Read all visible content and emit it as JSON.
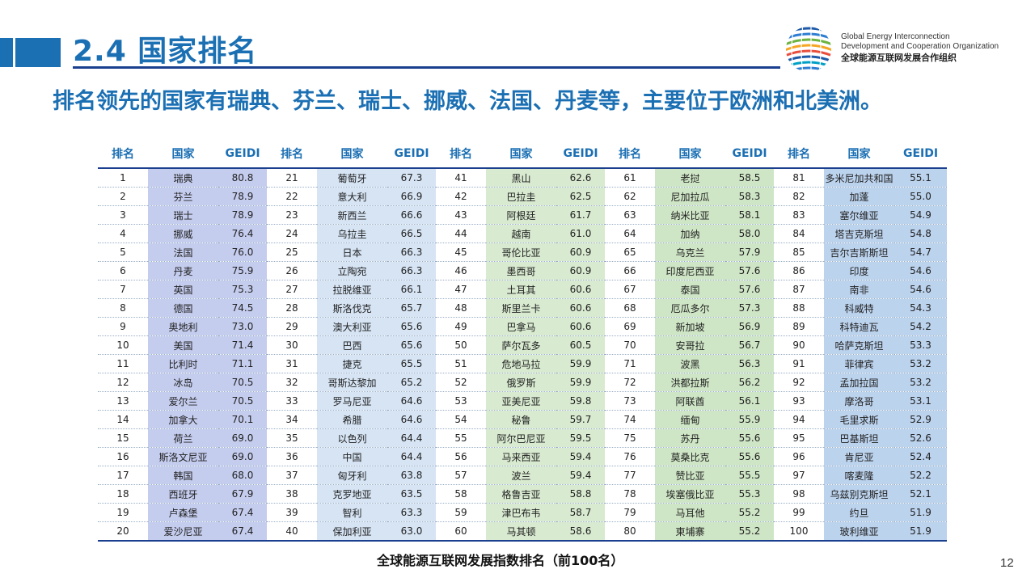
{
  "slide": {
    "title": "2.4 国家排名",
    "subtitle": "排名领先的国家有瑞典、芬兰、瑞士、挪威、法国、丹麦等，主要位于欧洲和北美洲。",
    "caption": "全球能源互联网发展指数排名（前100名）",
    "page_number": "12"
  },
  "org": {
    "name_en_line1": "Global Energy Interconnection",
    "name_en_line2": "Development and Cooperation Organization",
    "name_cn": "全球能源互联网发展合作组织"
  },
  "colors": {
    "brand_blue": "#1b6fb3",
    "rule_navy": "#1b3f8f",
    "group_fill_1": "#c5cdef",
    "group_fill_2": "#d6e4f4",
    "group_fill_3": "#d8ead0",
    "group_fill_4": "#cfe6c6",
    "group_fill_5": "#bcd3ee"
  },
  "table": {
    "headers": [
      "排名",
      "国家",
      "GEIDI",
      "排名",
      "国家",
      "GEIDI",
      "排名",
      "国家",
      "GEIDI",
      "排名",
      "国家",
      "GEIDI",
      "排名",
      "国家",
      "GEIDI"
    ],
    "rows": [
      [
        "1",
        "瑞典",
        "80.8",
        "21",
        "葡萄牙",
        "67.3",
        "41",
        "黑山",
        "62.6",
        "61",
        "老挝",
        "58.5",
        "81",
        "多米尼加共和国",
        "55.1"
      ],
      [
        "2",
        "芬兰",
        "78.9",
        "22",
        "意大利",
        "66.9",
        "42",
        "巴拉圭",
        "62.5",
        "62",
        "尼加拉瓜",
        "58.3",
        "82",
        "加蓬",
        "55.0"
      ],
      [
        "3",
        "瑞士",
        "78.9",
        "23",
        "新西兰",
        "66.6",
        "43",
        "阿根廷",
        "61.7",
        "63",
        "纳米比亚",
        "58.1",
        "83",
        "塞尔维亚",
        "54.9"
      ],
      [
        "4",
        "挪威",
        "76.4",
        "24",
        "乌拉圭",
        "66.5",
        "44",
        "越南",
        "61.0",
        "64",
        "加纳",
        "58.0",
        "84",
        "塔吉克斯坦",
        "54.8"
      ],
      [
        "5",
        "法国",
        "76.0",
        "25",
        "日本",
        "66.3",
        "45",
        "哥伦比亚",
        "60.9",
        "65",
        "乌克兰",
        "57.9",
        "85",
        "吉尔吉斯斯坦",
        "54.7"
      ],
      [
        "6",
        "丹麦",
        "75.9",
        "26",
        "立陶宛",
        "66.3",
        "46",
        "墨西哥",
        "60.9",
        "66",
        "印度尼西亚",
        "57.6",
        "86",
        "印度",
        "54.6"
      ],
      [
        "7",
        "英国",
        "75.3",
        "27",
        "拉脱维亚",
        "66.1",
        "47",
        "土耳其",
        "60.6",
        "67",
        "泰国",
        "57.6",
        "87",
        "南非",
        "54.6"
      ],
      [
        "8",
        "德国",
        "74.5",
        "28",
        "斯洛伐克",
        "65.7",
        "48",
        "斯里兰卡",
        "60.6",
        "68",
        "厄瓜多尔",
        "57.3",
        "88",
        "科威特",
        "54.3"
      ],
      [
        "9",
        "奥地利",
        "73.0",
        "29",
        "澳大利亚",
        "65.6",
        "49",
        "巴拿马",
        "60.6",
        "69",
        "新加坡",
        "56.9",
        "89",
        "科特迪瓦",
        "54.2"
      ],
      [
        "10",
        "美国",
        "71.4",
        "30",
        "巴西",
        "65.6",
        "50",
        "萨尔瓦多",
        "60.5",
        "70",
        "安哥拉",
        "56.7",
        "90",
        "哈萨克斯坦",
        "53.3"
      ],
      [
        "11",
        "比利时",
        "71.1",
        "31",
        "捷克",
        "65.5",
        "51",
        "危地马拉",
        "59.9",
        "71",
        "波黑",
        "56.3",
        "91",
        "菲律宾",
        "53.2"
      ],
      [
        "12",
        "冰岛",
        "70.5",
        "32",
        "哥斯达黎加",
        "65.2",
        "52",
        "俄罗斯",
        "59.9",
        "72",
        "洪都拉斯",
        "56.2",
        "92",
        "孟加拉国",
        "53.2"
      ],
      [
        "13",
        "爱尔兰",
        "70.5",
        "33",
        "罗马尼亚",
        "64.6",
        "53",
        "亚美尼亚",
        "59.8",
        "73",
        "阿联酋",
        "56.1",
        "93",
        "摩洛哥",
        "53.1"
      ],
      [
        "14",
        "加拿大",
        "70.1",
        "34",
        "希腊",
        "64.6",
        "54",
        "秘鲁",
        "59.7",
        "74",
        "缅甸",
        "55.9",
        "94",
        "毛里求斯",
        "52.9"
      ],
      [
        "15",
        "荷兰",
        "69.0",
        "35",
        "以色列",
        "64.4",
        "55",
        "阿尔巴尼亚",
        "59.5",
        "75",
        "苏丹",
        "55.6",
        "95",
        "巴基斯坦",
        "52.6"
      ],
      [
        "16",
        "斯洛文尼亚",
        "69.0",
        "36",
        "中国",
        "64.4",
        "56",
        "马来西亚",
        "59.4",
        "76",
        "莫桑比克",
        "55.6",
        "96",
        "肯尼亚",
        "52.4"
      ],
      [
        "17",
        "韩国",
        "68.0",
        "37",
        "匈牙利",
        "63.8",
        "57",
        "波兰",
        "59.4",
        "77",
        "赞比亚",
        "55.5",
        "97",
        "喀麦隆",
        "52.2"
      ],
      [
        "18",
        "西班牙",
        "67.9",
        "38",
        "克罗地亚",
        "63.5",
        "58",
        "格鲁吉亚",
        "58.8",
        "78",
        "埃塞俄比亚",
        "55.3",
        "98",
        "乌兹别克斯坦",
        "52.1"
      ],
      [
        "19",
        "卢森堡",
        "67.4",
        "39",
        "智利",
        "63.3",
        "59",
        "津巴布韦",
        "58.7",
        "79",
        "马耳他",
        "55.2",
        "99",
        "约旦",
        "51.9"
      ],
      [
        "20",
        "爱沙尼亚",
        "67.4",
        "40",
        "保加利亚",
        "63.0",
        "60",
        "马其顿",
        "58.6",
        "80",
        "柬埔寨",
        "55.2",
        "100",
        "玻利维亚",
        "51.9"
      ]
    ]
  }
}
